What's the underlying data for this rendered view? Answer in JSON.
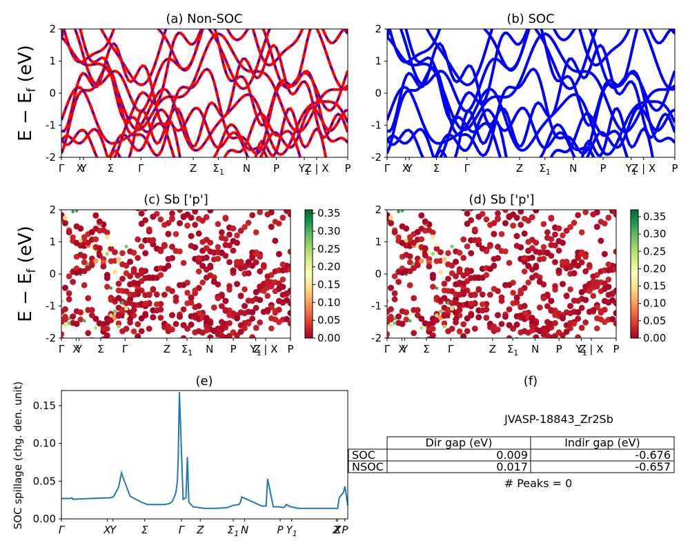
{
  "ylabel_band": "E − E",
  "ylabel_sub": "f",
  "ylabel_unit": " (eV)",
  "kpath": [
    {
      "main": "Γ"
    },
    {
      "main": "X"
    },
    {
      "main": "Y"
    },
    {
      "main": "Σ"
    },
    {
      "main": "Γ"
    },
    {
      "main": "Z"
    },
    {
      "main": "Σ",
      "sub": "1"
    },
    {
      "main": "N"
    },
    {
      "main": "P"
    },
    {
      "main": "Y",
      "sub": "1"
    },
    {
      "main": "Z | X"
    },
    {
      "main": "P"
    }
  ],
  "kpath_pos": [
    0,
    0.0646,
    0.0771,
    0.1717,
    0.2777,
    0.4604,
    0.5484,
    0.6469,
    0.7506,
    0.8482,
    0.8914,
    1.0
  ],
  "chart_data": [
    {
      "id": "a",
      "type": "line",
      "title": "(a) Non-SOC",
      "ylim": [
        -2,
        2
      ],
      "yticks": [
        -2,
        -1,
        0,
        1,
        2
      ],
      "series": [
        {
          "color": "#ff0000",
          "overlay": "#0000ff"
        }
      ]
    },
    {
      "id": "b",
      "type": "line",
      "title": "(b) SOC",
      "ylim": [
        -2,
        2
      ],
      "yticks": [
        -2,
        -1,
        0,
        1,
        2
      ],
      "series": [
        {
          "color": "#0000ff"
        }
      ]
    },
    {
      "id": "c",
      "type": "scatter",
      "title": "(c)  Sb ['p']",
      "ylim": [
        -2,
        2
      ],
      "yticks": [
        -2,
        -1,
        0,
        1,
        2
      ],
      "colorbar": {
        "ticks": [
          "0.00",
          "0.05",
          "0.10",
          "0.15",
          "0.20",
          "0.25",
          "0.30",
          "0.35"
        ],
        "min": 0,
        "max": 0.36,
        "cmap": "RdYlGn"
      }
    },
    {
      "id": "d",
      "type": "scatter",
      "title": "(d) Sb ['p']",
      "ylim": [
        -2,
        2
      ],
      "yticks": [
        -2,
        -1,
        0,
        1,
        2
      ],
      "colorbar": {
        "ticks": [
          "0.00",
          "0.05",
          "0.10",
          "0.15",
          "0.20",
          "0.25",
          "0.30",
          "0.35"
        ],
        "min": 0,
        "max": 0.37,
        "cmap": "RdYlGn"
      }
    },
    {
      "id": "e",
      "type": "line",
      "title": "(e)",
      "ylabel": "SOC spillage (chg. den. unit)",
      "ylim": [
        0,
        0.17
      ],
      "yticks": [
        "0.00",
        "0.05",
        "0.10",
        "0.15"
      ],
      "xticks": [
        {
          "main": "Γ",
          "pos": 0
        },
        {
          "main": "X",
          "pos": 0.16
        },
        {
          "main": "Y",
          "pos": 0.18
        },
        {
          "main": "Σ",
          "pos": 0.291
        },
        {
          "main": "Γ",
          "pos": 0.419
        },
        {
          "main": "Z",
          "pos": 0.485
        },
        {
          "main": "Σ",
          "sub": "1",
          "pos": 0.6
        },
        {
          "main": "N",
          "pos": 0.64
        },
        {
          "main": "P",
          "pos": 0.764
        },
        {
          "main": "Y",
          "sub": "1",
          "pos": 0.804
        },
        {
          "main": "Z",
          "pos": 0.96
        },
        {
          "main": "X",
          "pos": 0.965
        },
        {
          "main": "P",
          "pos": 0.99
        }
      ],
      "x": [
        0,
        0.03,
        0.036,
        0.04,
        0.1,
        0.17,
        0.18,
        0.185,
        0.19,
        0.2,
        0.21,
        0.22,
        0.24,
        0.28,
        0.3,
        0.33,
        0.36,
        0.375,
        0.385,
        0.39,
        0.395,
        0.4,
        0.405,
        0.408,
        0.412,
        0.425,
        0.43,
        0.435,
        0.44,
        0.445,
        0.46,
        0.48,
        0.5,
        0.54,
        0.58,
        0.6,
        0.6,
        0.62,
        0.625,
        0.63,
        0.7,
        0.7,
        0.71,
        0.715,
        0.72,
        0.74,
        0.76,
        0.775,
        0.78,
        0.785,
        0.8,
        0.83,
        0.86,
        0.9,
        0.96,
        0.965,
        0.97,
        0.985,
        0.99,
        1.0
      ],
      "values": [
        0.027,
        0.027,
        0.028,
        0.026,
        0.027,
        0.028,
        0.029,
        0.031,
        0.035,
        0.042,
        0.061,
        0.05,
        0.03,
        0.022,
        0.019,
        0.019,
        0.019,
        0.02,
        0.022,
        0.025,
        0.03,
        0.035,
        0.05,
        0.08,
        0.168,
        0.026,
        0.027,
        0.028,
        0.082,
        0.022,
        0.016,
        0.015,
        0.014,
        0.014,
        0.015,
        0.018,
        0.018,
        0.019,
        0.022,
        0.029,
        0.017,
        0.017,
        0.017,
        0.017,
        0.053,
        0.016,
        0.016,
        0.015,
        0.016,
        0.019,
        0.016,
        0.014,
        0.014,
        0.014,
        0.014,
        0.014,
        0.028,
        0.035,
        0.043,
        0.018
      ]
    },
    {
      "id": "f",
      "type": "table",
      "title": "(f)",
      "subtitle": "JVASP-18843_Zr2Sb",
      "columns": [
        "Dir gap (eV)",
        "Indir gap (eV)"
      ],
      "rows": [
        {
          "label": "SOC",
          "dir": "0.009",
          "indir": "-0.676"
        },
        {
          "label": "NSOC",
          "dir": "0.017",
          "indir": "-0.657"
        }
      ],
      "peaks": "# Peaks = 0"
    }
  ]
}
